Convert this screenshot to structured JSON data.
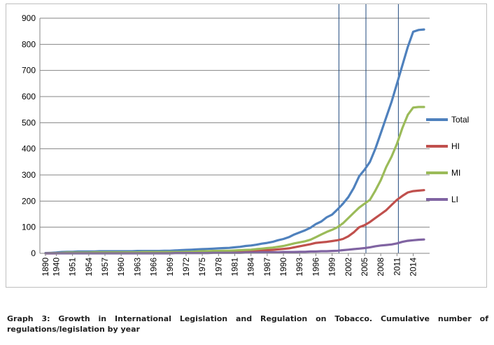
{
  "caption": "Graph 3: Growth in International Legislation and Regulation on Tobacco. Cumulative number of regulations/legislation by year",
  "chart_data": {
    "type": "line",
    "title": "",
    "xlabel": "",
    "ylabel": "",
    "ylim": [
      0,
      900
    ],
    "yticks": [
      0,
      100,
      200,
      300,
      400,
      500,
      600,
      700,
      800,
      900
    ],
    "x_tick_labels": [
      "1890",
      "1940",
      "1951",
      "1954",
      "1957",
      "1960",
      "1963",
      "1966",
      "1969",
      "1972",
      "1975",
      "1978",
      "1981",
      "1984",
      "1987",
      "1990",
      "1993",
      "1996",
      "1999",
      "2002",
      "2005",
      "2008",
      "2011",
      "2014"
    ],
    "x": [
      "1890",
      "1938",
      "1940",
      "1945",
      "1950",
      "1951",
      "1952",
      "1953",
      "1954",
      "1955",
      "1956",
      "1957",
      "1958",
      "1959",
      "1960",
      "1961",
      "1962",
      "1963",
      "1964",
      "1965",
      "1966",
      "1967",
      "1968",
      "1969",
      "1970",
      "1971",
      "1972",
      "1973",
      "1974",
      "1975",
      "1976",
      "1977",
      "1978",
      "1979",
      "1980",
      "1981",
      "1982",
      "1983",
      "1984",
      "1985",
      "1986",
      "1987",
      "1988",
      "1989",
      "1990",
      "1991",
      "1992",
      "1993",
      "1994",
      "1995",
      "1996",
      "1997",
      "1998",
      "1999",
      "2000",
      "2001",
      "2002",
      "2003",
      "2004",
      "2005",
      "2006",
      "2007",
      "2008",
      "2009",
      "2010",
      "2011",
      "2012",
      "2013",
      "2014",
      "2015",
      "2016"
    ],
    "vertical_markers": [
      "2000",
      "2005",
      "2011"
    ],
    "grid": "horizontal",
    "legend_position": "right",
    "series": [
      {
        "name": "Total",
        "color": "#4f81bd",
        "values": [
          1,
          2,
          3,
          5,
          6,
          6,
          7,
          7,
          7,
          7,
          8,
          8,
          8,
          8,
          8,
          8,
          8,
          9,
          9,
          9,
          9,
          9,
          10,
          10,
          11,
          12,
          13,
          14,
          15,
          16,
          17,
          18,
          19,
          20,
          21,
          23,
          25,
          28,
          30,
          33,
          37,
          40,
          44,
          50,
          55,
          62,
          72,
          80,
          88,
          98,
          112,
          122,
          138,
          148,
          168,
          190,
          215,
          250,
          295,
          320,
          350,
          400,
          460,
          520,
          580,
          650,
          720,
          790,
          848,
          855,
          857
        ]
      },
      {
        "name": "HI",
        "color": "#c0504d",
        "values": [
          0,
          0,
          0,
          1,
          1,
          1,
          1,
          1,
          1,
          1,
          1,
          1,
          1,
          1,
          1,
          1,
          1,
          1,
          1,
          1,
          1,
          1,
          2,
          2,
          2,
          2,
          3,
          3,
          3,
          4,
          4,
          5,
          5,
          5,
          6,
          6,
          7,
          8,
          9,
          10,
          11,
          12,
          13,
          15,
          17,
          19,
          23,
          27,
          31,
          35,
          40,
          42,
          44,
          47,
          50,
          55,
          65,
          80,
          100,
          108,
          120,
          135,
          150,
          165,
          185,
          205,
          220,
          233,
          238,
          240,
          242
        ]
      },
      {
        "name": "MI",
        "color": "#9bbb59",
        "values": [
          0,
          1,
          1,
          2,
          3,
          3,
          3,
          3,
          3,
          4,
          4,
          4,
          4,
          4,
          4,
          4,
          4,
          4,
          5,
          5,
          5,
          5,
          5,
          5,
          5,
          5,
          6,
          6,
          7,
          8,
          8,
          9,
          9,
          10,
          10,
          11,
          12,
          13,
          14,
          16,
          18,
          20,
          22,
          25,
          28,
          33,
          38,
          42,
          46,
          52,
          62,
          72,
          82,
          90,
          100,
          115,
          135,
          155,
          175,
          190,
          205,
          240,
          280,
          330,
          370,
          420,
          480,
          530,
          558,
          560,
          560
        ]
      },
      {
        "name": "LI",
        "color": "#8064a2",
        "values": [
          0,
          0,
          0,
          0,
          0,
          0,
          0,
          0,
          0,
          0,
          0,
          0,
          0,
          0,
          0,
          0,
          0,
          0,
          0,
          0,
          0,
          0,
          0,
          0,
          1,
          1,
          1,
          1,
          1,
          1,
          1,
          2,
          2,
          2,
          2,
          2,
          2,
          3,
          3,
          3,
          4,
          4,
          4,
          4,
          5,
          5,
          5,
          6,
          6,
          7,
          7,
          8,
          8,
          9,
          10,
          12,
          14,
          16,
          18,
          20,
          23,
          27,
          30,
          32,
          34,
          38,
          44,
          48,
          50,
          52,
          53
        ]
      }
    ]
  }
}
